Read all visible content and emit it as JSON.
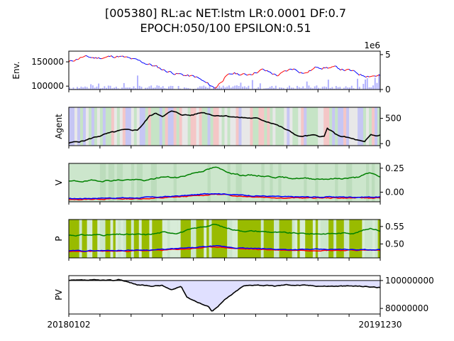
{
  "title_line1": "[005380] RL:ac NET:lstm LR:0.0001 DF:0.7",
  "title_line2": "EPOCH:050/100 EPSILON:0.51",
  "x_start_label": "20180102",
  "x_end_label": "20191230",
  "colors": {
    "price_up": "#ff0000",
    "price_down": "#0000ff",
    "volume": "#b0b0ff",
    "agent_line": "#000000",
    "action_buy": "#f4c6c6",
    "action_sell": "#c6c6f4",
    "action_hold": "#c6e4c6",
    "v_background": "#cce6cc",
    "p_background": "#99bb00",
    "v_buy": "#ff0000",
    "v_sell": "#0000ff",
    "v_hold": "#008000",
    "pv_line": "#000000",
    "pv_fill": "#e0e0ff"
  },
  "chart_data": [
    {
      "type": "line",
      "panel": "env",
      "ylabel": "Env.",
      "ylim": [
        93000,
        172000
      ],
      "yticks": [
        "100000",
        "150000"
      ],
      "ytick_values": [
        100000,
        150000
      ],
      "secondary_axis": {
        "label_offset": "1e6",
        "ylim": [
          0,
          5.5
        ],
        "yticks": [
          "0",
          "5"
        ],
        "ytick_values": [
          0,
          5
        ]
      },
      "series": [
        {
          "values_x_frac": [
            0,
            0.04,
            0.09,
            0.16,
            0.2,
            0.26,
            0.31,
            0.36,
            0.41,
            0.44,
            0.47,
            0.5,
            0.53,
            0.57,
            0.62,
            0.67,
            0.72,
            0.76,
            0.8,
            0.85,
            0.9,
            0.94,
            1.0
          ],
          "values": [
            149000,
            160000,
            158000,
            162000,
            155000,
            145000,
            132000,
            124000,
            118000,
            106000,
            96000,
            118000,
            126000,
            123000,
            134000,
            122000,
            136000,
            127000,
            140000,
            138000,
            132000,
            123000,
            122000
          ]
        }
      ]
    },
    {
      "type": "line",
      "panel": "agent",
      "ylabel": "Agent",
      "ylim": [
        -40,
        720
      ],
      "yticks": [
        "0",
        "500"
      ],
      "ytick_values": [
        0,
        500
      ],
      "series": [
        {
          "values_x_frac": [
            0,
            0.05,
            0.08,
            0.12,
            0.17,
            0.22,
            0.24,
            0.26,
            0.28,
            0.3,
            0.33,
            0.36,
            0.39,
            0.43,
            0.47,
            0.5,
            0.54,
            0.6,
            0.66,
            0.69,
            0.74,
            0.78,
            0.82,
            0.83,
            0.86,
            0.9,
            0.93,
            0.95,
            0.97,
            0.99,
            1.0
          ],
          "values": [
            10,
            60,
            120,
            190,
            260,
            270,
            400,
            550,
            600,
            550,
            640,
            580,
            560,
            620,
            560,
            560,
            520,
            500,
            400,
            300,
            140,
            160,
            140,
            300,
            170,
            110,
            60,
            20,
            170,
            150,
            180
          ]
        }
      ]
    },
    {
      "type": "line",
      "panel": "V",
      "ylabel": "V",
      "ylim": [
        -0.1,
        0.3
      ],
      "yticks": [
        "0.00",
        "0.25"
      ],
      "ytick_values": [
        0.0,
        0.25
      ],
      "series": [
        {
          "values_x_frac": [
            0,
            0.1,
            0.2,
            0.25,
            0.3,
            0.35,
            0.4,
            0.45,
            0.47,
            0.5,
            0.55,
            0.62,
            0.7,
            0.78,
            0.85,
            0.92,
            0.97,
            1.0
          ],
          "values": [
            0.11,
            0.12,
            0.13,
            0.12,
            0.16,
            0.15,
            0.2,
            0.24,
            0.26,
            0.22,
            0.18,
            0.17,
            0.15,
            0.14,
            0.14,
            0.15,
            0.2,
            0.16
          ]
        },
        {
          "values_x_frac": [
            0,
            0.1,
            0.2,
            0.3,
            0.4,
            0.47,
            0.55,
            0.7,
            0.85,
            1.0
          ],
          "values": [
            -0.07,
            -0.06,
            -0.06,
            -0.05,
            -0.03,
            -0.01,
            -0.03,
            -0.05,
            -0.05,
            -0.05
          ]
        },
        {
          "values_x_frac": [
            0,
            0.1,
            0.2,
            0.3,
            0.4,
            0.47,
            0.55,
            0.7,
            0.85,
            1.0
          ],
          "values": [
            -0.08,
            -0.07,
            -0.07,
            -0.06,
            -0.04,
            -0.02,
            -0.04,
            -0.06,
            -0.06,
            -0.06
          ]
        }
      ]
    },
    {
      "type": "line",
      "panel": "P",
      "ylabel": "P",
      "ylim": [
        0.46,
        0.57
      ],
      "yticks": [
        "0.50",
        "0.55"
      ],
      "ytick_values": [
        0.5,
        0.55
      ],
      "series": [
        {
          "values_x_frac": [
            0,
            0.1,
            0.2,
            0.25,
            0.3,
            0.35,
            0.4,
            0.45,
            0.47,
            0.5,
            0.55,
            0.62,
            0.7,
            0.78,
            0.85,
            0.92,
            0.97,
            1.0
          ],
          "values": [
            0.525,
            0.526,
            0.527,
            0.526,
            0.533,
            0.532,
            0.543,
            0.553,
            0.556,
            0.547,
            0.538,
            0.536,
            0.531,
            0.529,
            0.53,
            0.532,
            0.546,
            0.538
          ]
        },
        {
          "values_x_frac": [
            0,
            0.1,
            0.2,
            0.3,
            0.4,
            0.47,
            0.55,
            0.7,
            0.85,
            1.0
          ],
          "values": [
            0.48,
            0.481,
            0.482,
            0.484,
            0.489,
            0.494,
            0.488,
            0.484,
            0.484,
            0.484
          ]
        },
        {
          "values_x_frac": [
            0,
            0.1,
            0.2,
            0.3,
            0.4,
            0.47,
            0.55,
            0.7,
            0.85,
            1.0
          ],
          "values": [
            0.478,
            0.479,
            0.48,
            0.482,
            0.487,
            0.492,
            0.486,
            0.482,
            0.482,
            0.482
          ]
        }
      ]
    },
    {
      "type": "area",
      "panel": "PV",
      "ylabel": "PV",
      "ylim": [
        76000000,
        103500000
      ],
      "yticks": [
        "80000000",
        "100000000"
      ],
      "ytick_values": [
        80000000,
        100000000
      ],
      "baseline": 100000000,
      "series": [
        {
          "values_x_frac": [
            0,
            0.1,
            0.15,
            0.16,
            0.19,
            0.22,
            0.26,
            0.3,
            0.33,
            0.36,
            0.38,
            0.41,
            0.43,
            0.45,
            0.46,
            0.48,
            0.5,
            0.53,
            0.56,
            0.6,
            0.66,
            0.7,
            0.76,
            0.82,
            0.88,
            0.93,
            0.97,
            1.0
          ],
          "values": [
            100000000,
            100200000,
            100000000,
            101000000,
            99000000,
            97000000,
            96000000,
            96500000,
            93000000,
            96000000,
            88000000,
            85000000,
            83000000,
            81000000,
            78000000,
            82000000,
            86000000,
            91000000,
            96000000,
            97000000,
            96000000,
            97000000,
            96500000,
            96000000,
            96000000,
            96000000,
            95500000,
            95000000
          ]
        }
      ]
    }
  ]
}
